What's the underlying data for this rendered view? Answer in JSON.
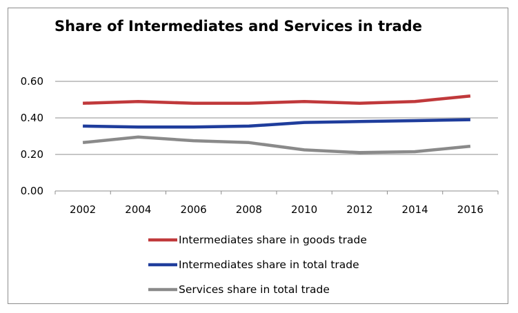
{
  "chart_data": {
    "type": "line",
    "title": "Share of Intermediates and Services in trade",
    "xlabel": "",
    "ylabel": "",
    "x": [
      2002,
      2004,
      2006,
      2008,
      2010,
      2012,
      2014,
      2016
    ],
    "x_tick_labels": [
      "2002",
      "2004",
      "2006",
      "2008",
      "2010",
      "2012",
      "2014",
      "2016"
    ],
    "y_tick_labels": [
      "0.00",
      "0.20",
      "0.40",
      "0.60"
    ],
    "ylim": [
      0,
      0.6
    ],
    "grid": true,
    "legend_position": "bottom",
    "series": [
      {
        "name": "Intermediates share in goods trade",
        "color": "#c0393b",
        "values": [
          0.48,
          0.49,
          0.48,
          0.48,
          0.49,
          0.48,
          0.49,
          0.52
        ]
      },
      {
        "name": "Intermediates share in total trade",
        "color": "#1f3d9c",
        "values": [
          0.355,
          0.35,
          0.35,
          0.355,
          0.375,
          0.38,
          0.385,
          0.39
        ]
      },
      {
        "name": "Services share in total trade",
        "color": "#8a8a8a",
        "values": [
          0.265,
          0.295,
          0.275,
          0.265,
          0.225,
          0.21,
          0.215,
          0.245
        ]
      }
    ]
  }
}
